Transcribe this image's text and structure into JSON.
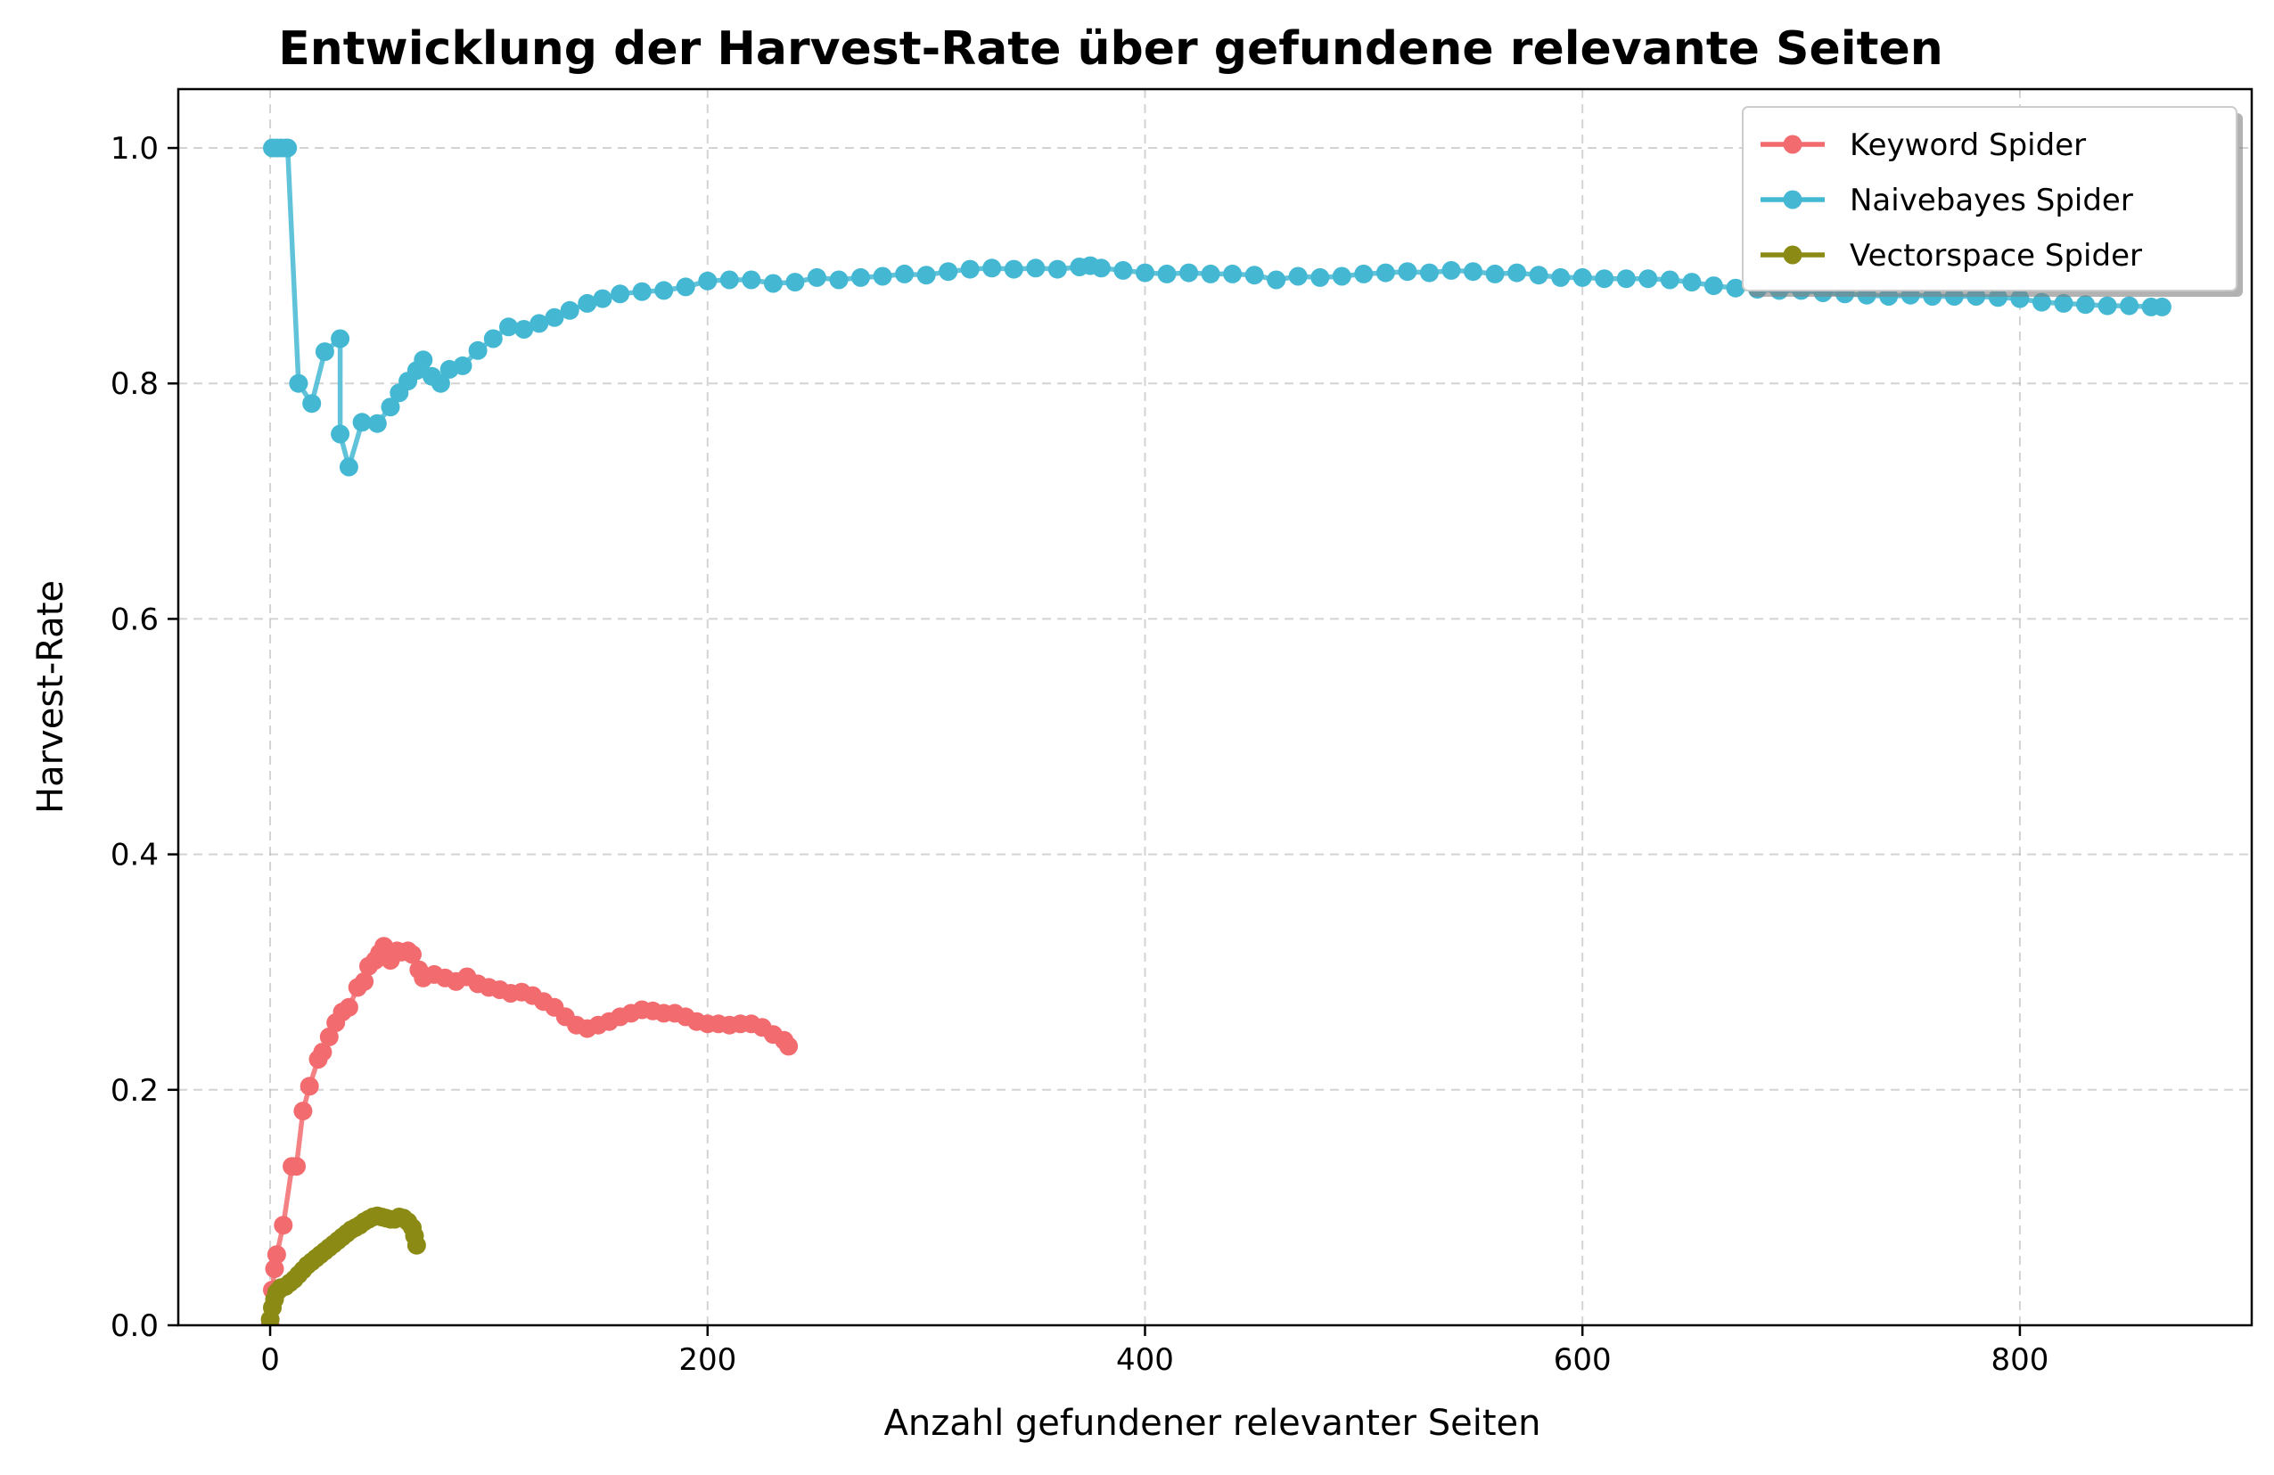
{
  "chart_data": {
    "type": "line",
    "title": "Entwicklung der Harvest-Rate über gefundene relevante Seiten",
    "xlabel": "Anzahl gefundener relevanter Seiten",
    "ylabel": "Harvest-Rate",
    "xlim": [
      -42,
      906
    ],
    "ylim": [
      0,
      1.05
    ],
    "x_ticks": [
      0,
      200,
      400,
      600,
      800
    ],
    "y_ticks": [
      0.0,
      0.2,
      0.4,
      0.6,
      0.8,
      1.0
    ],
    "x_tick_labels": [
      "0",
      "200",
      "400",
      "600",
      "800"
    ],
    "y_tick_labels": [
      "0.0",
      "0.2",
      "0.4",
      "0.6",
      "0.8",
      "1.0"
    ],
    "grid": true,
    "legend_position": "top-right",
    "series": [
      {
        "name": "Keyword Spider",
        "color": "#f26b6f",
        "points": [
          [
            0,
            0.0
          ],
          [
            1,
            0.03
          ],
          [
            2,
            0.048
          ],
          [
            3,
            0.06
          ],
          [
            6,
            0.085
          ],
          [
            10,
            0.135
          ],
          [
            12,
            0.135
          ],
          [
            15,
            0.182
          ],
          [
            18,
            0.203
          ],
          [
            22,
            0.226
          ],
          [
            24,
            0.232
          ],
          [
            27,
            0.245
          ],
          [
            30,
            0.257
          ],
          [
            33,
            0.266
          ],
          [
            36,
            0.27
          ],
          [
            40,
            0.287
          ],
          [
            43,
            0.292
          ],
          [
            45,
            0.305
          ],
          [
            48,
            0.31
          ],
          [
            50,
            0.316
          ],
          [
            52,
            0.322
          ],
          [
            55,
            0.31
          ],
          [
            58,
            0.318
          ],
          [
            60,
            0.317
          ],
          [
            63,
            0.318
          ],
          [
            65,
            0.315
          ],
          [
            68,
            0.302
          ],
          [
            70,
            0.295
          ],
          [
            75,
            0.298
          ],
          [
            80,
            0.295
          ],
          [
            85,
            0.292
          ],
          [
            90,
            0.296
          ],
          [
            95,
            0.29
          ],
          [
            100,
            0.287
          ],
          [
            105,
            0.285
          ],
          [
            110,
            0.282
          ],
          [
            115,
            0.283
          ],
          [
            120,
            0.28
          ],
          [
            125,
            0.275
          ],
          [
            130,
            0.27
          ],
          [
            135,
            0.262
          ],
          [
            140,
            0.255
          ],
          [
            145,
            0.252
          ],
          [
            150,
            0.255
          ],
          [
            155,
            0.258
          ],
          [
            160,
            0.262
          ],
          [
            165,
            0.265
          ],
          [
            170,
            0.268
          ],
          [
            175,
            0.267
          ],
          [
            180,
            0.265
          ],
          [
            185,
            0.265
          ],
          [
            190,
            0.262
          ],
          [
            195,
            0.258
          ],
          [
            200,
            0.256
          ],
          [
            205,
            0.256
          ],
          [
            210,
            0.255
          ],
          [
            215,
            0.256
          ],
          [
            220,
            0.256
          ],
          [
            225,
            0.253
          ],
          [
            230,
            0.247
          ],
          [
            235,
            0.242
          ],
          [
            237,
            0.237
          ]
        ]
      },
      {
        "name": "Naivebayes Spider",
        "color": "#44b8d3",
        "points": [
          [
            1,
            1.0
          ],
          [
            3,
            1.0
          ],
          [
            5,
            1.0
          ],
          [
            7,
            1.0
          ],
          [
            8,
            1.0
          ],
          [
            13,
            0.8
          ],
          [
            19,
            0.783
          ],
          [
            25,
            0.827
          ],
          [
            32,
            0.838
          ],
          [
            32,
            0.757
          ],
          [
            36,
            0.729
          ],
          [
            42,
            0.767
          ],
          [
            49,
            0.766
          ],
          [
            55,
            0.78
          ],
          [
            59,
            0.792
          ],
          [
            63,
            0.802
          ],
          [
            67,
            0.811
          ],
          [
            70,
            0.82
          ],
          [
            74,
            0.806
          ],
          [
            78,
            0.8
          ],
          [
            82,
            0.812
          ],
          [
            88,
            0.815
          ],
          [
            95,
            0.828
          ],
          [
            102,
            0.838
          ],
          [
            109,
            0.848
          ],
          [
            116,
            0.846
          ],
          [
            123,
            0.851
          ],
          [
            130,
            0.856
          ],
          [
            137,
            0.862
          ],
          [
            145,
            0.868
          ],
          [
            152,
            0.872
          ],
          [
            160,
            0.876
          ],
          [
            170,
            0.878
          ],
          [
            180,
            0.879
          ],
          [
            190,
            0.882
          ],
          [
            200,
            0.887
          ],
          [
            210,
            0.888
          ],
          [
            220,
            0.888
          ],
          [
            230,
            0.885
          ],
          [
            240,
            0.886
          ],
          [
            250,
            0.89
          ],
          [
            260,
            0.888
          ],
          [
            270,
            0.89
          ],
          [
            280,
            0.891
          ],
          [
            290,
            0.893
          ],
          [
            300,
            0.892
          ],
          [
            310,
            0.895
          ],
          [
            320,
            0.897
          ],
          [
            330,
            0.898
          ],
          [
            340,
            0.897
          ],
          [
            350,
            0.898
          ],
          [
            360,
            0.897
          ],
          [
            370,
            0.899
          ],
          [
            375,
            0.9
          ],
          [
            380,
            0.898
          ],
          [
            390,
            0.896
          ],
          [
            400,
            0.894
          ],
          [
            410,
            0.893
          ],
          [
            420,
            0.894
          ],
          [
            430,
            0.893
          ],
          [
            440,
            0.893
          ],
          [
            450,
            0.892
          ],
          [
            460,
            0.888
          ],
          [
            470,
            0.891
          ],
          [
            480,
            0.89
          ],
          [
            490,
            0.891
          ],
          [
            500,
            0.893
          ],
          [
            510,
            0.894
          ],
          [
            520,
            0.895
          ],
          [
            530,
            0.894
          ],
          [
            540,
            0.896
          ],
          [
            550,
            0.895
          ],
          [
            560,
            0.893
          ],
          [
            570,
            0.894
          ],
          [
            580,
            0.892
          ],
          [
            590,
            0.89
          ],
          [
            600,
            0.89
          ],
          [
            610,
            0.889
          ],
          [
            620,
            0.889
          ],
          [
            630,
            0.889
          ],
          [
            640,
            0.888
          ],
          [
            650,
            0.886
          ],
          [
            660,
            0.883
          ],
          [
            670,
            0.881
          ],
          [
            680,
            0.88
          ],
          [
            690,
            0.879
          ],
          [
            700,
            0.879
          ],
          [
            710,
            0.877
          ],
          [
            720,
            0.876
          ],
          [
            730,
            0.875
          ],
          [
            740,
            0.874
          ],
          [
            750,
            0.875
          ],
          [
            760,
            0.874
          ],
          [
            770,
            0.874
          ],
          [
            780,
            0.874
          ],
          [
            790,
            0.873
          ],
          [
            800,
            0.872
          ],
          [
            810,
            0.869
          ],
          [
            820,
            0.868
          ],
          [
            830,
            0.867
          ],
          [
            840,
            0.866
          ],
          [
            850,
            0.866
          ],
          [
            860,
            0.865
          ],
          [
            865,
            0.865
          ]
        ]
      },
      {
        "name": "Vectorspace Spider",
        "color": "#8a8a14",
        "points": [
          [
            0,
            0.005
          ],
          [
            1,
            0.015
          ],
          [
            2,
            0.022
          ],
          [
            3,
            0.028
          ],
          [
            4,
            0.03
          ],
          [
            5,
            0.032
          ],
          [
            7,
            0.033
          ],
          [
            9,
            0.036
          ],
          [
            11,
            0.039
          ],
          [
            13,
            0.043
          ],
          [
            15,
            0.047
          ],
          [
            17,
            0.051
          ],
          [
            19,
            0.054
          ],
          [
            21,
            0.057
          ],
          [
            23,
            0.06
          ],
          [
            25,
            0.063
          ],
          [
            27,
            0.066
          ],
          [
            29,
            0.069
          ],
          [
            31,
            0.072
          ],
          [
            33,
            0.075
          ],
          [
            35,
            0.078
          ],
          [
            37,
            0.081
          ],
          [
            39,
            0.083
          ],
          [
            41,
            0.085
          ],
          [
            43,
            0.088
          ],
          [
            45,
            0.09
          ],
          [
            47,
            0.092
          ],
          [
            49,
            0.093
          ],
          [
            51,
            0.092
          ],
          [
            53,
            0.091
          ],
          [
            55,
            0.09
          ],
          [
            57,
            0.09
          ],
          [
            59,
            0.092
          ],
          [
            61,
            0.091
          ],
          [
            63,
            0.088
          ],
          [
            65,
            0.083
          ],
          [
            66,
            0.076
          ],
          [
            67,
            0.068
          ]
        ]
      }
    ]
  }
}
